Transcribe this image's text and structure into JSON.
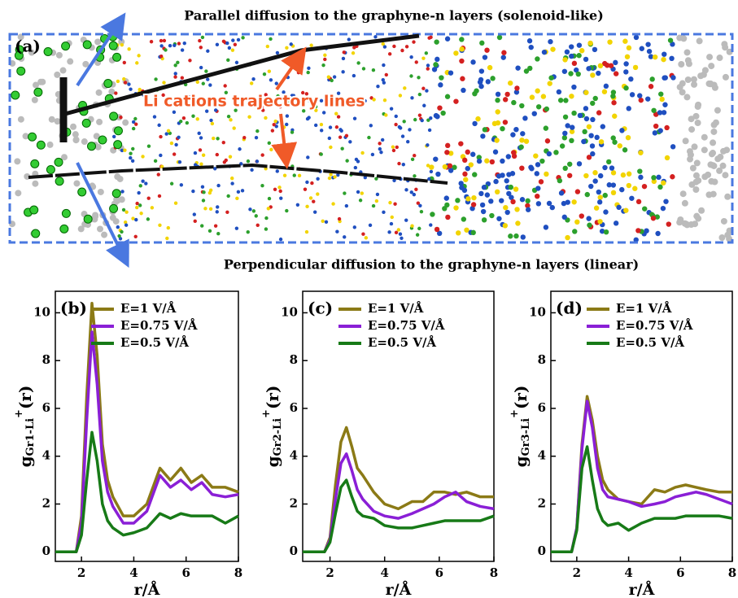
{
  "panel_a": {
    "label": "(a)",
    "top_caption": "Parallel diffusion to the graphyne-n layers (solenoid-like)",
    "annotation": "Li cations trajectory lines",
    "bottom_caption": "Perpendicular diffusion to the graphyne-n layers (linear)"
  },
  "chart_data": [
    {
      "type": "line",
      "label": "(b)",
      "ylabel_parts": [
        "g",
        "Gr1-Li",
        "+",
        "(r)"
      ],
      "xlabel": "r/Å",
      "xlim": [
        1,
        8
      ],
      "ylim": [
        -0.4,
        10.9
      ],
      "xticks": [
        2,
        4,
        6,
        8
      ],
      "yticks": [
        0,
        2,
        4,
        6,
        8,
        10
      ],
      "x": [
        1,
        1.5,
        1.8,
        2,
        2.2,
        2.4,
        2.6,
        2.8,
        3,
        3.2,
        3.6,
        4,
        4.5,
        5,
        5.4,
        5.8,
        6.2,
        6.6,
        7,
        7.5,
        8
      ],
      "series": [
        {
          "name": "E=1 V/Å",
          "color": "#8b7a16",
          "values": [
            0,
            0,
            0,
            1.5,
            6.5,
            10.4,
            8.2,
            4.5,
            3.0,
            2.3,
            1.5,
            1.5,
            2.0,
            3.5,
            3.0,
            3.5,
            2.9,
            3.2,
            2.7,
            2.7,
            2.5
          ]
        },
        {
          "name": "E=0.75 V/Å",
          "color": "#8a1fd6",
          "values": [
            0,
            0,
            0,
            1.2,
            5.5,
            9.2,
            7.0,
            3.8,
            2.5,
            1.9,
            1.2,
            1.2,
            1.7,
            3.2,
            2.7,
            3.0,
            2.6,
            2.9,
            2.4,
            2.3,
            2.4
          ]
        },
        {
          "name": "E=0.5 V/Å",
          "color": "#177a17",
          "values": [
            0,
            0,
            0,
            0.7,
            3.0,
            5.0,
            3.8,
            2.0,
            1.3,
            1.0,
            0.7,
            0.8,
            1.0,
            1.6,
            1.4,
            1.6,
            1.5,
            1.5,
            1.5,
            1.2,
            1.5
          ]
        }
      ],
      "legend": "upper right"
    },
    {
      "type": "line",
      "label": "(c)",
      "ylabel_parts": [
        "g",
        "Gr2-Li",
        "+",
        "(r)"
      ],
      "xlabel": "r/Å",
      "xlim": [
        1,
        8
      ],
      "ylim": [
        -0.4,
        10.9
      ],
      "xticks": [
        2,
        4,
        6,
        8
      ],
      "yticks": [
        0,
        2,
        4,
        6,
        8,
        10
      ],
      "x": [
        1,
        1.5,
        1.8,
        2,
        2.2,
        2.4,
        2.6,
        2.8,
        3,
        3.2,
        3.6,
        4,
        4.5,
        5,
        5.4,
        5.8,
        6.2,
        6.6,
        7,
        7.5,
        8
      ],
      "series": [
        {
          "name": "E=1 V/Å",
          "color": "#8b7a16",
          "values": [
            0,
            0,
            0,
            0.6,
            2.8,
            4.6,
            5.2,
            4.4,
            3.5,
            3.2,
            2.5,
            2.0,
            1.8,
            2.1,
            2.1,
            2.5,
            2.5,
            2.4,
            2.5,
            2.3,
            2.3
          ]
        },
        {
          "name": "E=0.75 V/Å",
          "color": "#8a1fd6",
          "values": [
            0,
            0,
            0,
            0.5,
            2.2,
            3.7,
            4.1,
            3.4,
            2.6,
            2.2,
            1.7,
            1.5,
            1.4,
            1.6,
            1.8,
            2.0,
            2.3,
            2.5,
            2.1,
            1.9,
            1.8
          ]
        },
        {
          "name": "E=0.5 V/Å",
          "color": "#177a17",
          "values": [
            0,
            0,
            0,
            0.4,
            1.6,
            2.7,
            3.0,
            2.3,
            1.7,
            1.5,
            1.4,
            1.1,
            1.0,
            1.0,
            1.1,
            1.2,
            1.3,
            1.3,
            1.3,
            1.3,
            1.5
          ]
        }
      ],
      "legend": "upper right"
    },
    {
      "type": "line",
      "label": "(d)",
      "ylabel_parts": [
        "g",
        "Gr3-Li",
        "+",
        "(r)"
      ],
      "xlabel": "r/Å",
      "xlim": [
        1,
        8
      ],
      "ylim": [
        -0.4,
        10.9
      ],
      "xticks": [
        2,
        4,
        6,
        8
      ],
      "yticks": [
        0,
        2,
        4,
        6,
        8,
        10
      ],
      "x": [
        1,
        1.5,
        1.8,
        2,
        2.2,
        2.4,
        2.6,
        2.8,
        3,
        3.2,
        3.6,
        4,
        4.5,
        5,
        5.4,
        5.8,
        6.2,
        6.6,
        7,
        7.5,
        8
      ],
      "series": [
        {
          "name": "E=1 V/Å",
          "color": "#8b7a16",
          "values": [
            0,
            0,
            0,
            1.0,
            4.5,
            6.5,
            5.5,
            4.0,
            3.0,
            2.6,
            2.2,
            2.1,
            2.0,
            2.6,
            2.5,
            2.7,
            2.8,
            2.7,
            2.6,
            2.5,
            2.5
          ]
        },
        {
          "name": "E=0.75 V/Å",
          "color": "#8a1fd6",
          "values": [
            0,
            0,
            0,
            1.0,
            4.3,
            6.3,
            5.2,
            3.5,
            2.6,
            2.3,
            2.2,
            2.1,
            1.9,
            2.0,
            2.1,
            2.3,
            2.4,
            2.5,
            2.4,
            2.2,
            2.0
          ]
        },
        {
          "name": "E=0.5 V/Å",
          "color": "#177a17",
          "values": [
            0,
            0,
            0,
            0.9,
            3.5,
            4.4,
            3.0,
            1.8,
            1.3,
            1.1,
            1.2,
            0.9,
            1.2,
            1.4,
            1.4,
            1.4,
            1.5,
            1.5,
            1.5,
            1.5,
            1.4
          ]
        }
      ],
      "legend": "upper right"
    }
  ]
}
